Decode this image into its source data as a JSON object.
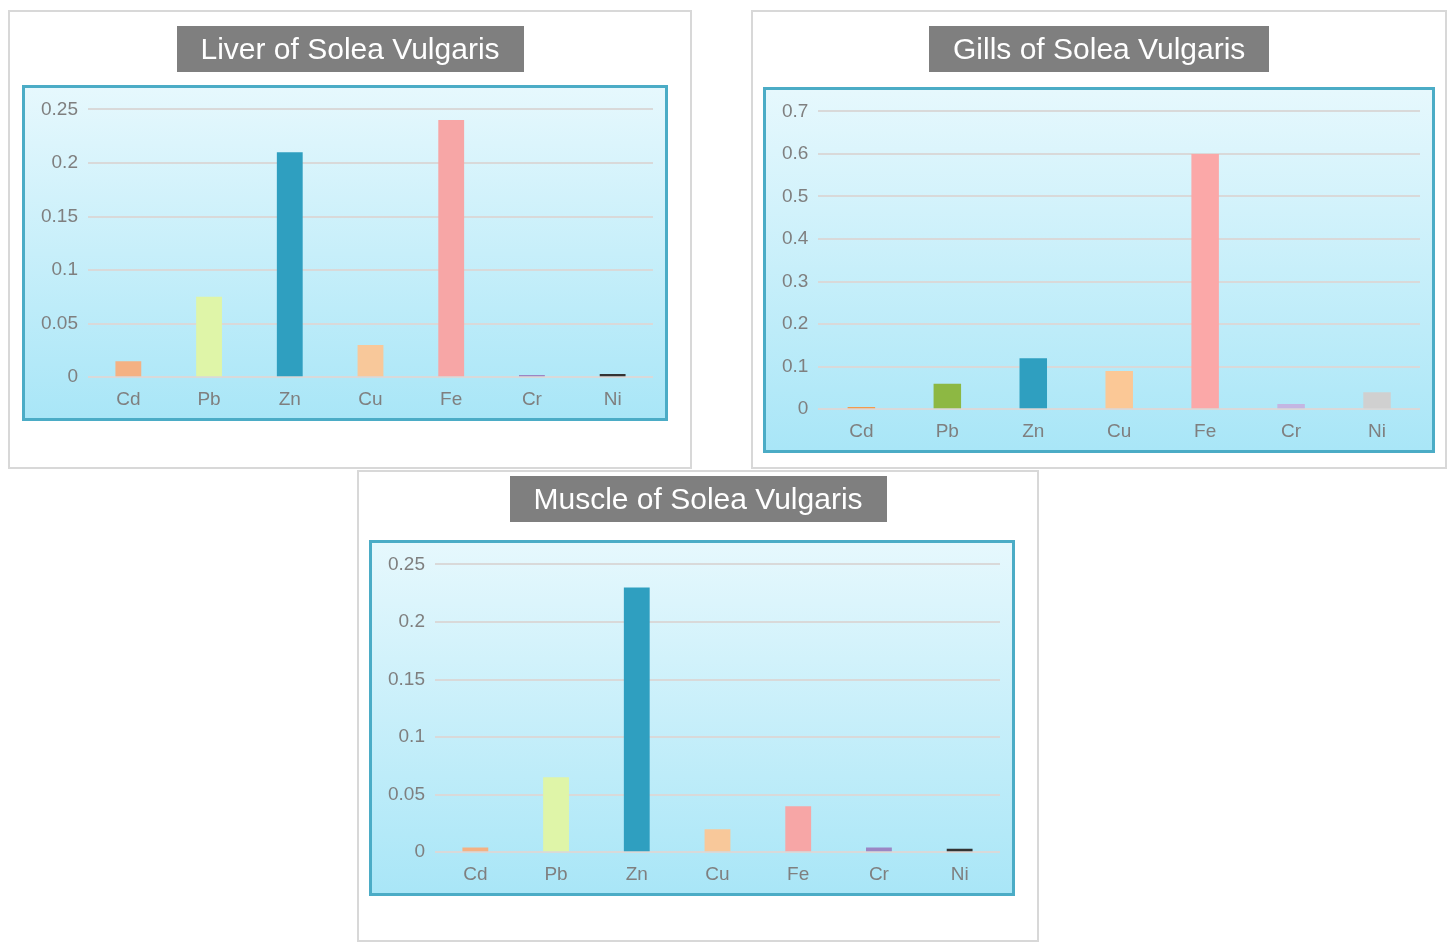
{
  "chart_data": [
    {
      "type": "bar",
      "title": "Liver of Solea Vulgaris",
      "categories": [
        "Cd",
        "Pb",
        "Zn",
        "Cu",
        "Fe",
        "Cr",
        "Ni"
      ],
      "values": [
        0.015,
        0.075,
        0.21,
        0.03,
        0.24,
        0.002,
        0.003
      ],
      "colors": [
        "#f4b183",
        "#dff5a8",
        "#2f9fc0",
        "#f8c89a",
        "#f7a6a6",
        "#9b86c4",
        "#333333"
      ],
      "ylim": [
        0,
        0.25
      ],
      "yticks": [
        0,
        0.05,
        0.1,
        0.15,
        0.2,
        0.25
      ],
      "grid": "y"
    },
    {
      "type": "bar",
      "title": "Gills of Solea Vulgaris",
      "categories": [
        "Cd",
        "Pb",
        "Zn",
        "Cu",
        "Fe",
        "Cr",
        "Ni"
      ],
      "values": [
        0.005,
        0.06,
        0.12,
        0.09,
        0.6,
        0.012,
        0.04
      ],
      "colors": [
        "#f29a4e",
        "#8db843",
        "#2f9fc0",
        "#fbc896",
        "#fba8a8",
        "#c4b6e2",
        "#d0d0d0"
      ],
      "ylim": [
        0,
        0.7
      ],
      "yticks": [
        0,
        0.1,
        0.2,
        0.3,
        0.4,
        0.5,
        0.6,
        0.7
      ],
      "grid": "y"
    },
    {
      "type": "bar",
      "title": "Muscle of Solea Vulgaris",
      "categories": [
        "Cd",
        "Pb",
        "Zn",
        "Cu",
        "Fe",
        "Cr",
        "Ni"
      ],
      "values": [
        0.004,
        0.065,
        0.23,
        0.02,
        0.04,
        0.004,
        0.003
      ],
      "colors": [
        "#f4b183",
        "#dff5a8",
        "#2f9fc0",
        "#f8c89a",
        "#f7a6a6",
        "#9b86c4",
        "#333333"
      ],
      "ylim": [
        0,
        0.25
      ],
      "yticks": [
        0,
        0.05,
        0.1,
        0.15,
        0.2,
        0.25
      ],
      "grid": "y"
    }
  ]
}
